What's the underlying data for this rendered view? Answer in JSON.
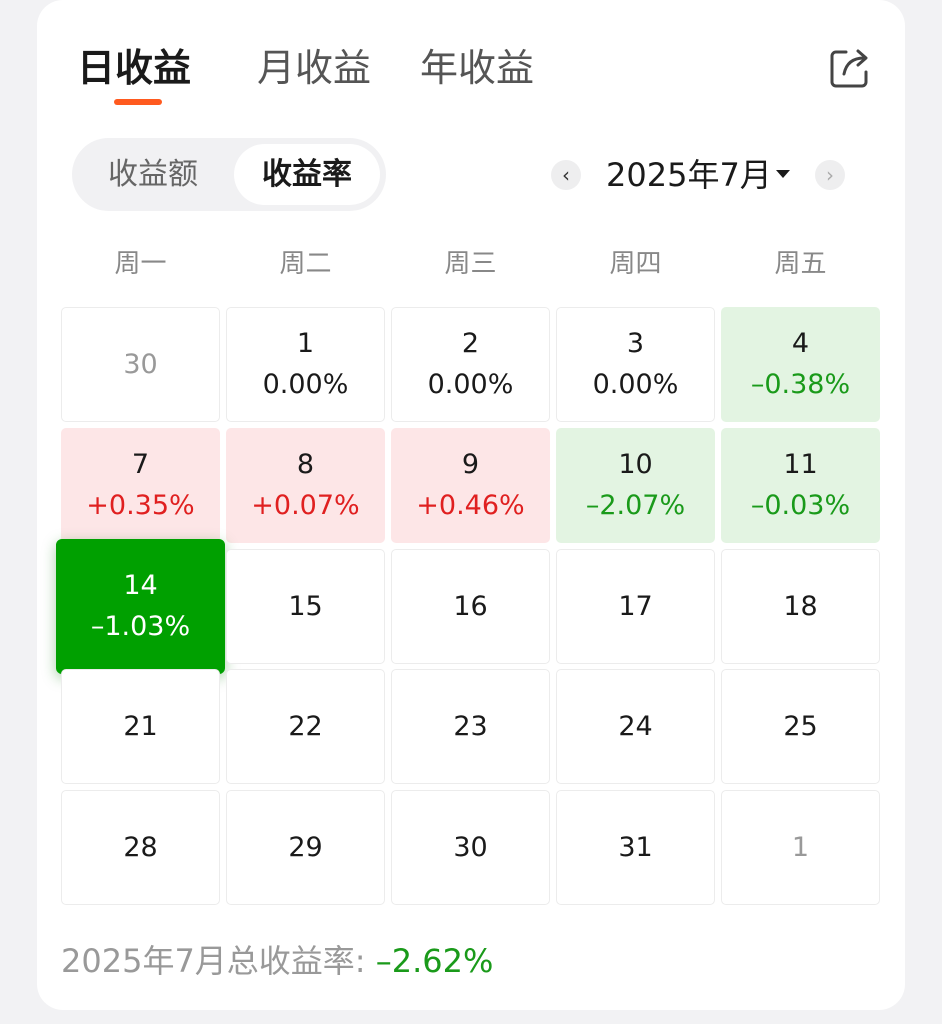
{
  "tabs": [
    {
      "label": "日收益",
      "active": true
    },
    {
      "label": "月收益",
      "active": false
    },
    {
      "label": "年收益",
      "active": false
    }
  ],
  "share_icon": "share-icon",
  "segment": {
    "amount_label": "收益额",
    "rate_label": "收益率",
    "selected": "rate"
  },
  "month_picker": {
    "label": "2025年7月",
    "prev_icon": "chevron-left-icon",
    "next_icon": "chevron-right-icon",
    "prev_glyph": "‹",
    "next_glyph": "›"
  },
  "weekdays": [
    "周一",
    "周二",
    "周三",
    "周四",
    "周五"
  ],
  "calendar": [
    [
      {
        "day": "30",
        "rate": "",
        "state": "other"
      },
      {
        "day": "1",
        "rate": "0.00%",
        "state": "flat"
      },
      {
        "day": "2",
        "rate": "0.00%",
        "state": "flat"
      },
      {
        "day": "3",
        "rate": "0.00%",
        "state": "flat"
      },
      {
        "day": "4",
        "rate": "–0.38%",
        "state": "down"
      }
    ],
    [
      {
        "day": "7",
        "rate": "+0.35%",
        "state": "up"
      },
      {
        "day": "8",
        "rate": "+0.07%",
        "state": "up"
      },
      {
        "day": "9",
        "rate": "+0.46%",
        "state": "up"
      },
      {
        "day": "10",
        "rate": "–2.07%",
        "state": "down"
      },
      {
        "day": "11",
        "rate": "–0.03%",
        "state": "down"
      }
    ],
    [
      {
        "day": "14",
        "rate": "–1.03%",
        "state": "sel"
      },
      {
        "day": "15",
        "rate": "",
        "state": "future"
      },
      {
        "day": "16",
        "rate": "",
        "state": "future"
      },
      {
        "day": "17",
        "rate": "",
        "state": "future"
      },
      {
        "day": "18",
        "rate": "",
        "state": "future"
      }
    ],
    [
      {
        "day": "21",
        "rate": "",
        "state": "future"
      },
      {
        "day": "22",
        "rate": "",
        "state": "future"
      },
      {
        "day": "23",
        "rate": "",
        "state": "future"
      },
      {
        "day": "24",
        "rate": "",
        "state": "future"
      },
      {
        "day": "25",
        "rate": "",
        "state": "future"
      }
    ],
    [
      {
        "day": "28",
        "rate": "",
        "state": "future"
      },
      {
        "day": "29",
        "rate": "",
        "state": "future"
      },
      {
        "day": "30",
        "rate": "",
        "state": "future"
      },
      {
        "day": "31",
        "rate": "",
        "state": "future"
      },
      {
        "day": "1",
        "rate": "",
        "state": "other"
      }
    ]
  ],
  "total": {
    "label": "2025年7月总收益率: ",
    "value": "–2.62%"
  },
  "colors": {
    "accent": "#ff5a1f",
    "up": "#e02020",
    "down": "#1a9a1a",
    "selected": "#00a000"
  }
}
